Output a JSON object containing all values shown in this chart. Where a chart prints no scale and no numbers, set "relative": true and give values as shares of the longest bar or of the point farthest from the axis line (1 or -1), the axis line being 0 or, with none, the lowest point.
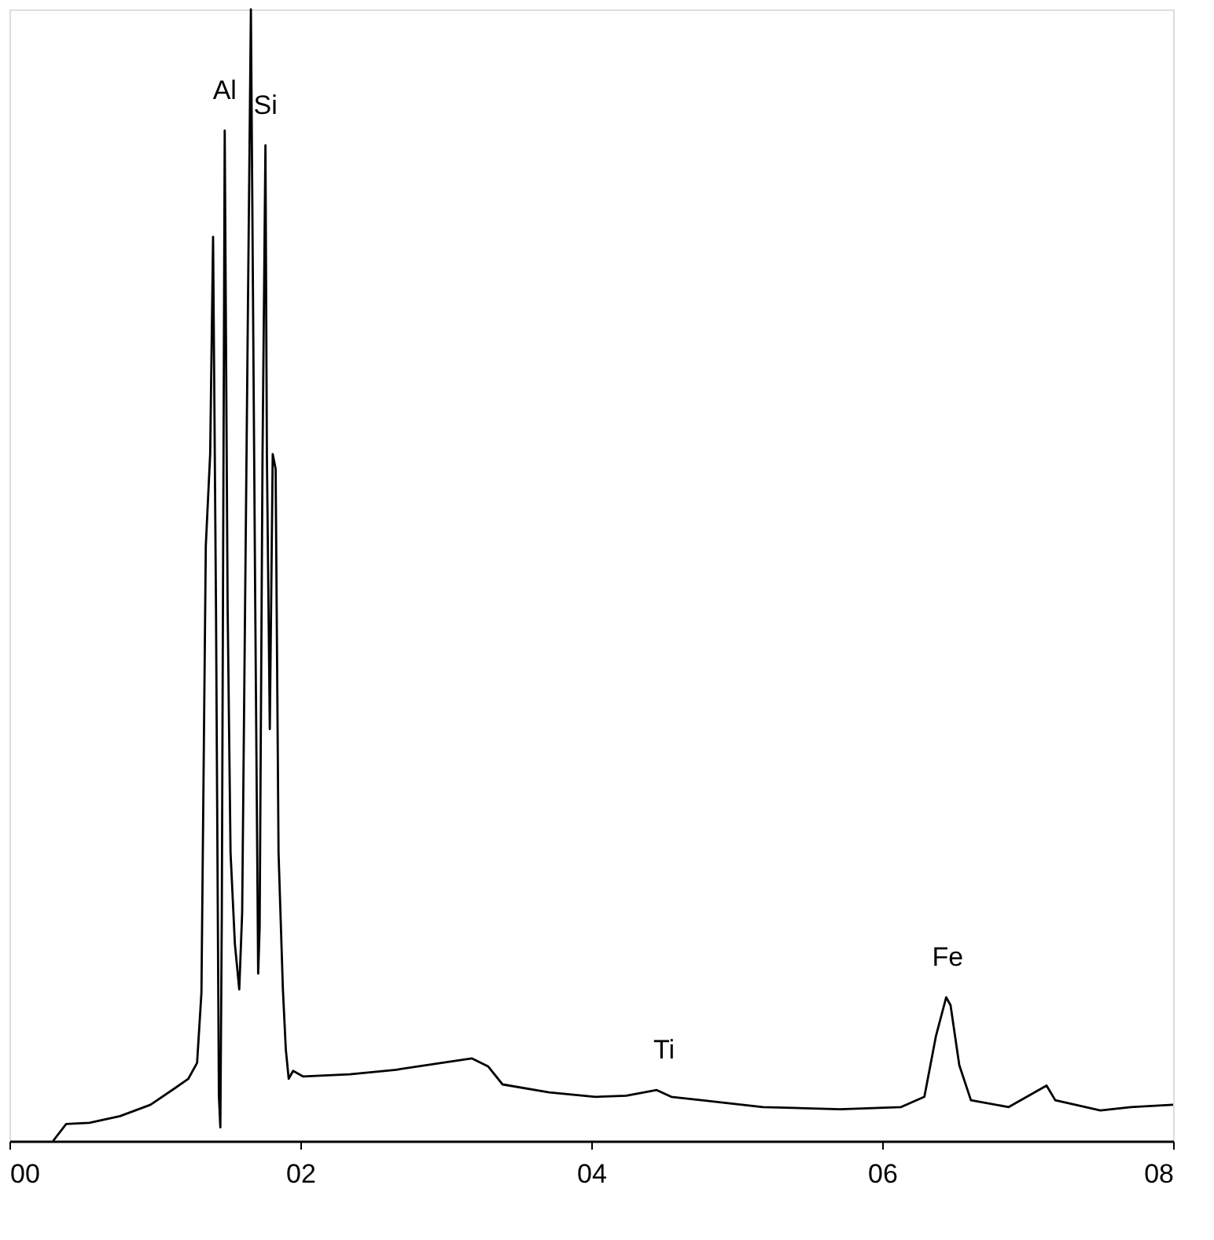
{
  "chart_data": {
    "type": "line",
    "relative": true,
    "grid": false,
    "marker": "none",
    "line_style": "solid",
    "xlim": [
      0,
      8
    ],
    "xticks": [
      {
        "value": 0,
        "label": "00"
      },
      {
        "value": 2,
        "label": "02"
      },
      {
        "value": 4,
        "label": "04"
      },
      {
        "value": 6,
        "label": "06"
      },
      {
        "value": 8,
        "label": "08"
      }
    ],
    "tick_labels": "x",
    "series": [
      {
        "color": "#000000",
        "x": [
          0.3,
          0.39,
          0.55,
          0.76,
          0.97,
          1.13,
          1.23,
          1.29,
          1.32,
          1.35,
          1.38,
          1.4,
          1.42,
          1.44,
          1.45,
          1.46,
          1.48,
          1.5,
          1.52,
          1.55,
          1.58,
          1.6,
          1.62,
          1.64,
          1.66,
          1.69,
          1.71,
          1.72,
          1.74,
          1.76,
          1.77,
          1.79,
          1.81,
          1.83,
          1.85,
          1.88,
          1.9,
          1.92,
          1.95,
          2.02,
          2.34,
          2.66,
          2.97,
          3.18,
          3.29,
          3.39,
          3.71,
          4.03,
          4.24,
          4.45,
          4.55,
          4.76,
          5.18,
          5.71,
          6.13,
          6.29,
          6.37,
          6.44,
          6.47,
          6.53,
          6.61,
          6.87,
          7.13,
          7.19,
          7.5,
          7.71,
          8.0
        ],
        "values": [
          0,
          0.015,
          0.016,
          0.022,
          0.032,
          0.046,
          0.055,
          0.069,
          0.131,
          0.526,
          0.607,
          0.799,
          0.472,
          0.04,
          0.012,
          0.2,
          0.893,
          0.472,
          0.255,
          0.174,
          0.134,
          0.202,
          0.472,
          0.741,
          1.0,
          0.472,
          0.148,
          0.188,
          0.606,
          0.88,
          0.606,
          0.364,
          0.607,
          0.594,
          0.255,
          0.134,
          0.081,
          0.055,
          0.062,
          0.057,
          0.059,
          0.063,
          0.069,
          0.073,
          0.066,
          0.05,
          0.043,
          0.039,
          0.04,
          0.045,
          0.039,
          0.036,
          0.03,
          0.028,
          0.03,
          0.039,
          0.093,
          0.127,
          0.12,
          0.067,
          0.036,
          0.03,
          0.049,
          0.036,
          0.027,
          0.03,
          0.032
        ]
      }
    ],
    "annotations": [
      {
        "text": "Al",
        "x": 1.48,
        "y": 0.893
      },
      {
        "text": "Si",
        "x": 1.76,
        "y": 0.88
      },
      {
        "text": "Ti",
        "x": 4.5,
        "y": 0.045
      },
      {
        "text": "Fe",
        "x": 6.45,
        "y": 0.127
      }
    ]
  }
}
